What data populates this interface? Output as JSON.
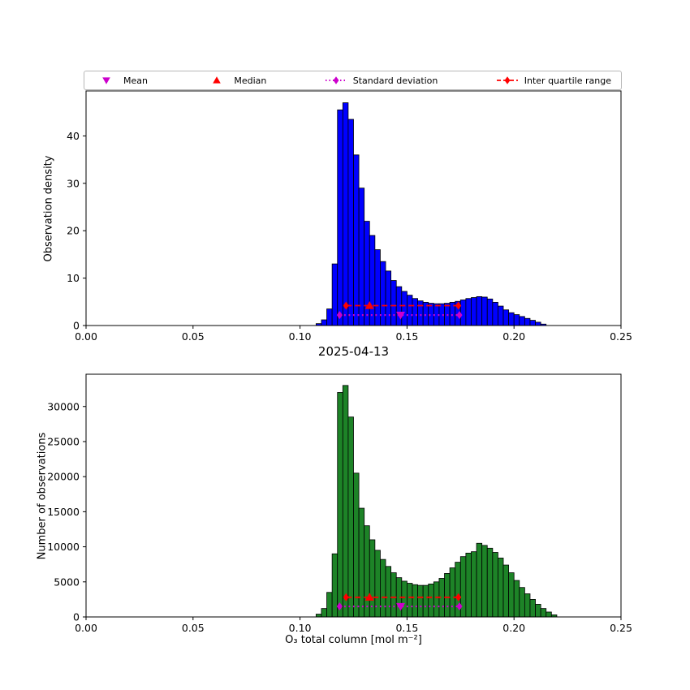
{
  "legend": {
    "position": "top",
    "items": [
      {
        "label": "Mean",
        "icon": "triangle-down-icon",
        "color": "#cc00cc",
        "linestyle": "none"
      },
      {
        "label": "Median",
        "icon": "triangle-up-icon",
        "color": "#ff0000",
        "linestyle": "none"
      },
      {
        "label": "Standard deviation",
        "icon": "diamond-icon",
        "color": "#cc00cc",
        "linestyle": "dotted"
      },
      {
        "label": "Inter quartile range",
        "icon": "diamond-icon",
        "color": "#ff0000",
        "linestyle": "dashed"
      }
    ]
  },
  "colors": {
    "blue": "#0000ff",
    "green": "#1d8327",
    "magenta": "#cc00cc",
    "red": "#ff0000",
    "axis": "#000000",
    "background": "#ffffff"
  },
  "chart_data": [
    {
      "name": "observation-density-histogram",
      "type": "bar",
      "title": "",
      "xlabel": "",
      "ylabel": "Observation density",
      "xlim": [
        0.0,
        0.25
      ],
      "ylim": [
        0,
        49.5
      ],
      "grid": false,
      "bar_color": "#0000ff",
      "bin_start": 0.1075,
      "bin_width": 0.0025,
      "values": [
        0.4,
        1.2,
        3.5,
        13,
        45.5,
        47,
        43.5,
        36,
        29,
        22,
        19,
        16,
        13.5,
        11.5,
        9.5,
        8.2,
        7.2,
        6.4,
        5.7,
        5.2,
        4.9,
        4.7,
        4.6,
        4.6,
        4.7,
        4.9,
        5.1,
        5.4,
        5.7,
        5.9,
        6.1,
        6.0,
        5.6,
        4.9,
        4.1,
        3.3,
        2.7,
        2.3,
        1.9,
        1.5,
        1.1,
        0.7,
        0.3
      ],
      "xticks": [
        {
          "v": 0.0,
          "label": "0.00"
        },
        {
          "v": 0.05,
          "label": "0.05"
        },
        {
          "v": 0.1,
          "label": "0.10"
        },
        {
          "v": 0.15,
          "label": "0.15"
        },
        {
          "v": 0.2,
          "label": "0.20"
        },
        {
          "v": 0.25,
          "label": "0.25"
        }
      ],
      "yticks": [
        {
          "v": 0,
          "label": "0"
        },
        {
          "v": 10,
          "label": "10"
        },
        {
          "v": 20,
          "label": "20"
        },
        {
          "v": 30,
          "label": "30"
        },
        {
          "v": 40,
          "label": "40"
        }
      ],
      "annotations": {
        "mean": {
          "x": 0.147,
          "y": 2.2
        },
        "median": {
          "x": 0.1325,
          "y": 4.2
        },
        "std": {
          "x1": 0.1185,
          "x2": 0.1745,
          "y": 2.2
        },
        "iqr": {
          "x1": 0.1215,
          "x2": 0.174,
          "y": 4.2
        }
      }
    },
    {
      "name": "observation-count-histogram",
      "type": "bar",
      "title": "2025-04-13",
      "xlabel": "O₃ total column [mol m⁻²]",
      "ylabel": "Number of observations",
      "xlim": [
        0.0,
        0.25
      ],
      "ylim": [
        0,
        34600
      ],
      "grid": false,
      "bar_color": "#1d8327",
      "bin_start": 0.1075,
      "bin_width": 0.0025,
      "values": [
        400,
        1200,
        3500,
        9000,
        32000,
        33000,
        28500,
        20500,
        15500,
        13000,
        11000,
        9500,
        8200,
        7200,
        6300,
        5600,
        5100,
        4800,
        4600,
        4500,
        4500,
        4700,
        5000,
        5500,
        6200,
        7000,
        7800,
        8600,
        9100,
        9300,
        10500,
        10200,
        9800,
        9200,
        8400,
        7400,
        6300,
        5200,
        4200,
        3300,
        2500,
        1800,
        1200,
        700,
        300
      ],
      "xticks": [
        {
          "v": 0.0,
          "label": "0.00"
        },
        {
          "v": 0.05,
          "label": "0.05"
        },
        {
          "v": 0.1,
          "label": "0.10"
        },
        {
          "v": 0.15,
          "label": "0.15"
        },
        {
          "v": 0.2,
          "label": "0.20"
        },
        {
          "v": 0.25,
          "label": "0.25"
        }
      ],
      "yticks": [
        {
          "v": 0,
          "label": "0"
        },
        {
          "v": 5000,
          "label": "5000"
        },
        {
          "v": 10000,
          "label": "10000"
        },
        {
          "v": 15000,
          "label": "15000"
        },
        {
          "v": 20000,
          "label": "20000"
        },
        {
          "v": 25000,
          "label": "25000"
        },
        {
          "v": 30000,
          "label": "30000"
        }
      ],
      "annotations": {
        "mean": {
          "x": 0.147,
          "y": 1500
        },
        "median": {
          "x": 0.1325,
          "y": 2800
        },
        "std": {
          "x1": 0.1185,
          "x2": 0.1745,
          "y": 1500
        },
        "iqr": {
          "x1": 0.1215,
          "x2": 0.174,
          "y": 2800
        }
      }
    }
  ]
}
